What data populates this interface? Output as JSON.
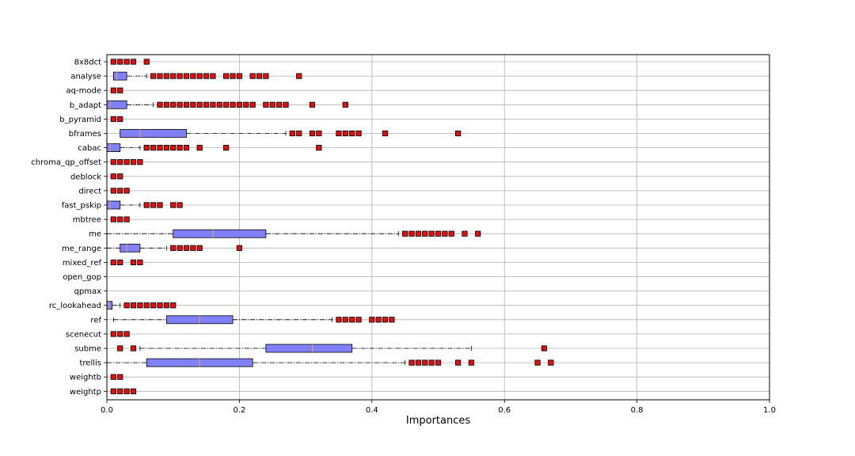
{
  "chart_data": {
    "type": "boxplot",
    "orientation": "horizontal",
    "title": "",
    "xlabel": "Importances",
    "ylabel": "",
    "xlim": [
      0,
      1.0
    ],
    "xticks": [
      "0.0",
      "0.2",
      "0.4",
      "0.6",
      "0.8",
      "1.0"
    ],
    "grid": true,
    "colors": {
      "box_fill": "#8080f8",
      "median": "#f0a050",
      "outlier_fill": "#e01010",
      "grid": "#b0b0b0"
    },
    "series": [
      {
        "name": "8x8dct",
        "box": null,
        "whiskers": null,
        "outliers": [
          0.01,
          0.02,
          0.03,
          0.04,
          0.06
        ]
      },
      {
        "name": "analyse",
        "box": [
          0.01,
          0.015,
          0.03
        ],
        "whiskers": [
          0.01,
          0.06
        ],
        "outliers": [
          0.07,
          0.08,
          0.09,
          0.1,
          0.11,
          0.12,
          0.13,
          0.14,
          0.15,
          0.16,
          0.18,
          0.19,
          0.2,
          0.22,
          0.23,
          0.24,
          0.29
        ]
      },
      {
        "name": "aq-mode",
        "box": null,
        "whiskers": null,
        "outliers": [
          0.01,
          0.02
        ]
      },
      {
        "name": "b_adapt",
        "box": [
          0.0,
          0.005,
          0.03
        ],
        "whiskers": [
          0.0,
          0.07
        ],
        "outliers": [
          0.08,
          0.09,
          0.1,
          0.11,
          0.12,
          0.13,
          0.14,
          0.15,
          0.16,
          0.17,
          0.18,
          0.19,
          0.2,
          0.21,
          0.22,
          0.24,
          0.25,
          0.26,
          0.27,
          0.31,
          0.36
        ]
      },
      {
        "name": "b_pyramid",
        "box": null,
        "whiskers": null,
        "outliers": [
          0.01,
          0.02
        ]
      },
      {
        "name": "bframes",
        "box": [
          0.02,
          0.05,
          0.12
        ],
        "whiskers": [
          0.02,
          0.27
        ],
        "outliers": [
          0.28,
          0.29,
          0.31,
          0.32,
          0.35,
          0.36,
          0.37,
          0.38,
          0.42,
          0.53
        ]
      },
      {
        "name": "cabac",
        "box": [
          0.0,
          0.005,
          0.02
        ],
        "whiskers": [
          0.0,
          0.05
        ],
        "outliers": [
          0.06,
          0.07,
          0.08,
          0.09,
          0.1,
          0.11,
          0.12,
          0.14,
          0.18,
          0.32
        ]
      },
      {
        "name": "chroma_qp_offset",
        "box": null,
        "whiskers": null,
        "outliers": [
          0.01,
          0.02,
          0.03,
          0.04,
          0.05
        ]
      },
      {
        "name": "deblock",
        "box": null,
        "whiskers": null,
        "outliers": [
          0.01,
          0.02
        ]
      },
      {
        "name": "direct",
        "box": null,
        "whiskers": null,
        "outliers": [
          0.01,
          0.02,
          0.03
        ]
      },
      {
        "name": "fast_pskip",
        "box": [
          0.0,
          0.005,
          0.02
        ],
        "whiskers": [
          0.0,
          0.05
        ],
        "outliers": [
          0.06,
          0.07,
          0.08,
          0.1,
          0.11
        ]
      },
      {
        "name": "mbtree",
        "box": null,
        "whiskers": null,
        "outliers": [
          0.01,
          0.02,
          0.03
        ]
      },
      {
        "name": "me",
        "box": [
          0.1,
          0.16,
          0.24
        ],
        "whiskers": [
          0.0,
          0.44
        ],
        "outliers": [
          0.45,
          0.46,
          0.47,
          0.48,
          0.49,
          0.5,
          0.51,
          0.52,
          0.54,
          0.56
        ]
      },
      {
        "name": "me_range",
        "box": [
          0.02,
          0.03,
          0.05
        ],
        "whiskers": [
          0.0,
          0.09
        ],
        "outliers": [
          0.1,
          0.11,
          0.12,
          0.13,
          0.14,
          0.2
        ]
      },
      {
        "name": "mixed_ref",
        "box": null,
        "whiskers": null,
        "outliers": [
          0.01,
          0.02,
          0.04,
          0.05
        ]
      },
      {
        "name": "open_gop",
        "box": null,
        "whiskers": null,
        "outliers": []
      },
      {
        "name": "qpmax",
        "box": null,
        "whiskers": null,
        "outliers": []
      },
      {
        "name": "rc_lookahead",
        "box": [
          0.0,
          0.003,
          0.008
        ],
        "whiskers": [
          0.0,
          0.02
        ],
        "outliers": [
          0.03,
          0.04,
          0.05,
          0.06,
          0.07,
          0.08,
          0.09,
          0.1
        ]
      },
      {
        "name": "ref",
        "box": [
          0.09,
          0.14,
          0.19
        ],
        "whiskers": [
          0.01,
          0.34
        ],
        "outliers": [
          0.35,
          0.36,
          0.37,
          0.38,
          0.4,
          0.41,
          0.42,
          0.43
        ]
      },
      {
        "name": "scenecut",
        "box": null,
        "whiskers": null,
        "outliers": [
          0.01,
          0.02,
          0.03
        ]
      },
      {
        "name": "subme",
        "box": [
          0.24,
          0.31,
          0.37
        ],
        "whiskers": [
          0.05,
          0.55
        ],
        "outliers": [
          0.02,
          0.04,
          0.66
        ]
      },
      {
        "name": "trellis",
        "box": [
          0.06,
          0.14,
          0.22
        ],
        "whiskers": [
          0.0,
          0.45
        ],
        "outliers": [
          0.46,
          0.47,
          0.48,
          0.49,
          0.5,
          0.53,
          0.55,
          0.65,
          0.67
        ]
      },
      {
        "name": "weightb",
        "box": null,
        "whiskers": null,
        "outliers": [
          0.01,
          0.02
        ]
      },
      {
        "name": "weightp",
        "box": null,
        "whiskers": null,
        "outliers": [
          0.01,
          0.02,
          0.03,
          0.04
        ]
      }
    ]
  }
}
